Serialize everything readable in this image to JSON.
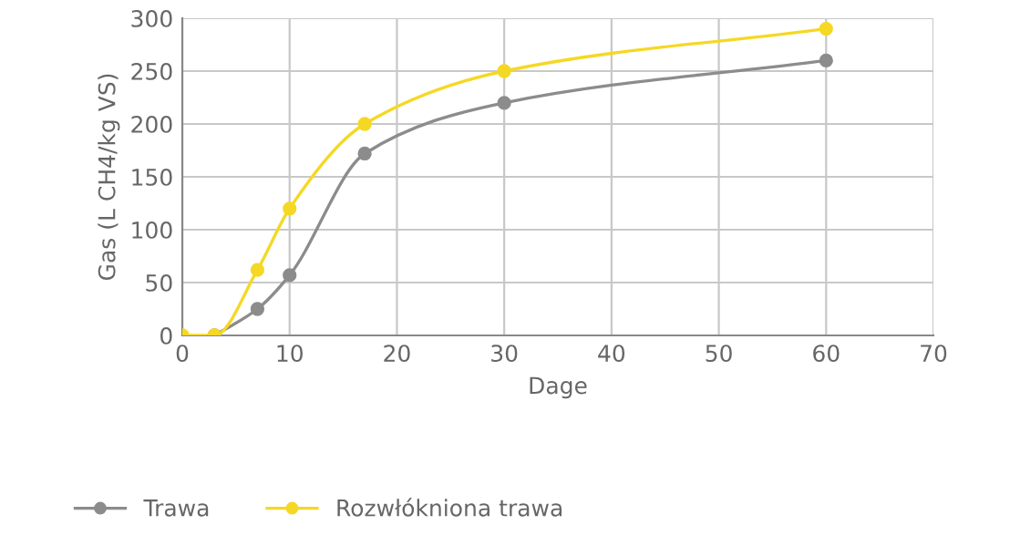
{
  "chart_data": {
    "type": "line",
    "xlabel": "Dage",
    "ylabel": "Gas (L CH4/kg VS)",
    "xlim": [
      0,
      70
    ],
    "xticks": [
      0,
      10,
      20,
      30,
      40,
      50,
      60,
      70
    ],
    "ylim": [
      0,
      300
    ],
    "yticks": [
      0,
      50,
      100,
      150,
      200,
      250,
      300
    ],
    "grid": true,
    "legend": "bottom",
    "marker": "circle",
    "line_style": "solid",
    "series": [
      {
        "name": "Trawa",
        "color": "#8c8c8c",
        "x": [
          3,
          7,
          10,
          17,
          30,
          60
        ],
        "values": [
          0,
          25,
          57,
          172,
          220,
          260
        ]
      },
      {
        "name": "Rozwłókniona trawa",
        "color": "#f5d824",
        "x": [
          0,
          3,
          7,
          10,
          17,
          30,
          60
        ],
        "values": [
          0,
          0,
          62,
          120,
          200,
          250,
          290
        ]
      }
    ]
  }
}
